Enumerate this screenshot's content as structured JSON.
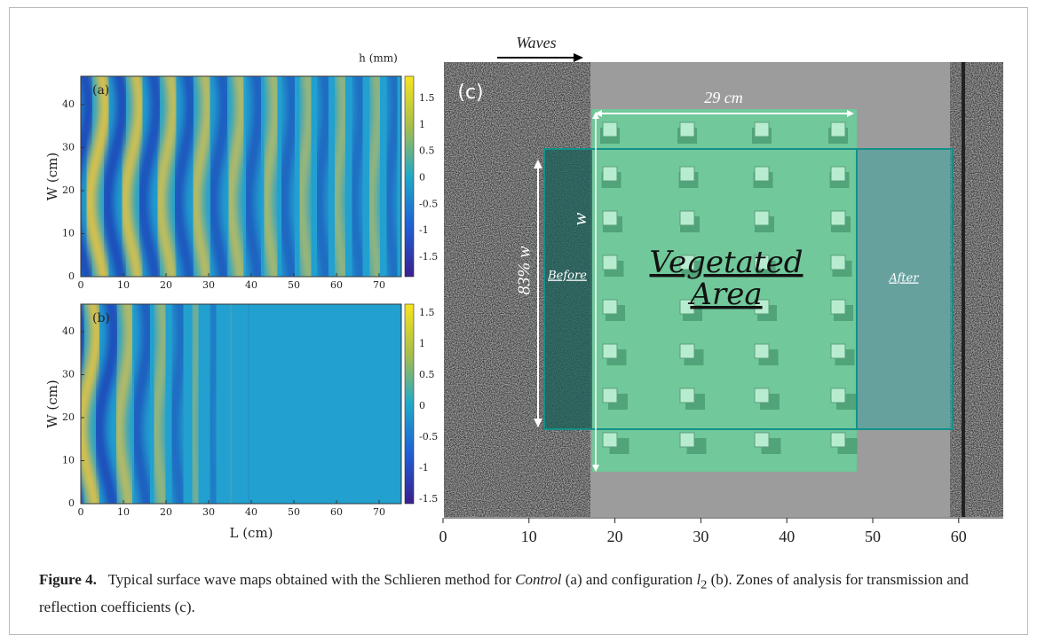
{
  "figure": {
    "panels": [
      {
        "label": "(a)",
        "colorbar_title": "h (mm)",
        "yaxis_label": "W (cm)",
        "yticks": [
          "0",
          "10",
          "20",
          "30",
          "40"
        ],
        "xticks": [
          "0",
          "10",
          "20",
          "30",
          "40",
          "50",
          "60",
          "70"
        ],
        "colorbar_ticks": [
          "1.5",
          "1",
          "0.5",
          "0",
          "-0.5",
          "-1",
          "-1.5"
        ]
      },
      {
        "label": "(b)",
        "yaxis_label": "W (cm)",
        "xaxis_label": "L (cm)",
        "yticks": [
          "0",
          "10",
          "20",
          "30",
          "40"
        ],
        "xticks": [
          "0",
          "10",
          "20",
          "30",
          "40",
          "50",
          "60",
          "70"
        ],
        "colorbar_ticks": [
          "1.5",
          "1",
          "0.5",
          "0",
          "-0.5",
          "-1",
          "-1.5"
        ]
      },
      {
        "label": "(c)",
        "waves": "Waves",
        "length": "29 cm",
        "width_symbol": "w",
        "band": "83% w",
        "before": "Before",
        "area_line1": "Vegetated",
        "area_line2": "Area",
        "after": "After",
        "xticks": [
          "0",
          "10",
          "20",
          "30",
          "40",
          "50",
          "60"
        ]
      }
    ]
  },
  "caption": {
    "label": "Figure 4.",
    "parts": [
      "Typical surface wave maps obtained with the Schlieren method for ",
      "Control",
      " (a) and configuration ",
      "l",
      "2",
      " (b). Zones of analysis for transmission and reflection coefficients (c)."
    ]
  }
}
